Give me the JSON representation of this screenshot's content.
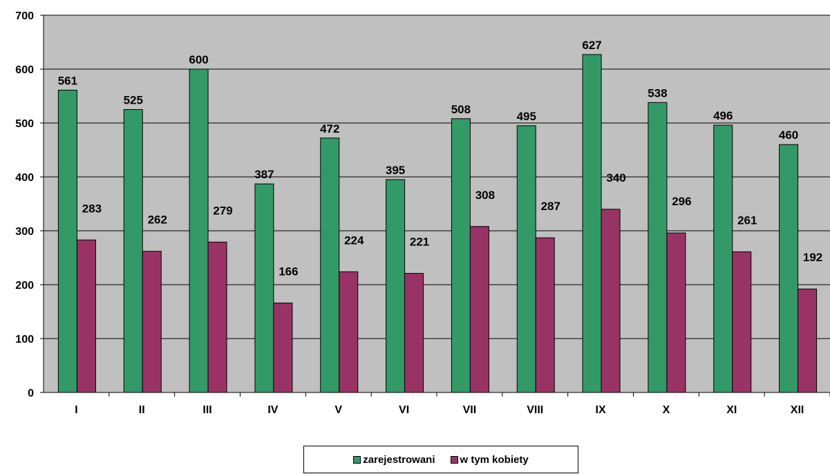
{
  "chart_data": {
    "type": "bar",
    "categories": [
      "I",
      "II",
      "III",
      "IV",
      "V",
      "VI",
      "VII",
      "VIII",
      "IX",
      "X",
      "XI",
      "XII"
    ],
    "series": [
      {
        "name": "zarejestrowani",
        "color": "#339966",
        "values": [
          561,
          525,
          600,
          387,
          472,
          395,
          508,
          495,
          627,
          538,
          496,
          460
        ]
      },
      {
        "name": "w tym kobiety",
        "color": "#993366",
        "values": [
          283,
          262,
          279,
          166,
          224,
          221,
          308,
          287,
          340,
          296,
          261,
          192
        ]
      }
    ],
    "ylim": [
      0,
      700
    ],
    "yticks": [
      0,
      100,
      200,
      300,
      400,
      500,
      600,
      700
    ],
    "grid": true,
    "plot_background": "#c0c0c0",
    "legend_position": "bottom"
  }
}
